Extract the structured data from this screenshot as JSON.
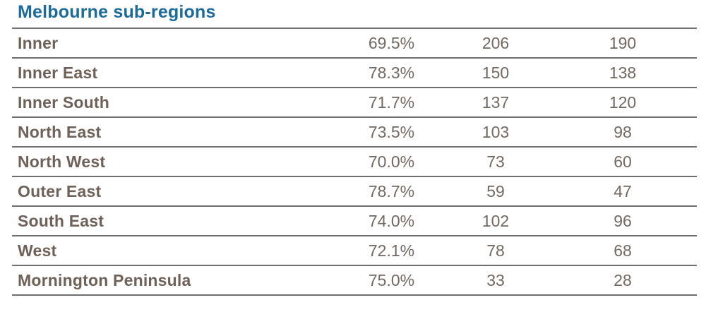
{
  "title": "Melbourne sub-regions",
  "colors": {
    "title_text": "#1B6C9A",
    "region_text": "#6F6157",
    "value_text": "#716961",
    "row_border": "#6F6F6F",
    "background": "#FFFFFF"
  },
  "chart_data": {
    "type": "table",
    "title": "Melbourne sub-regions",
    "rows": [
      [
        "Inner",
        "69.5%",
        "206",
        "190"
      ],
      [
        "Inner East",
        "78.3%",
        "150",
        "138"
      ],
      [
        "Inner South",
        "71.7%",
        "137",
        "120"
      ],
      [
        "North East",
        "73.5%",
        "103",
        "98"
      ],
      [
        "North West",
        "70.0%",
        "73",
        "60"
      ],
      [
        "Outer East",
        "78.7%",
        "59",
        "47"
      ],
      [
        "South East",
        "74.0%",
        "102",
        "96"
      ],
      [
        "West",
        "72.1%",
        "78",
        "68"
      ],
      [
        "Mornington Peninsula",
        "75.0%",
        "33",
        "28"
      ]
    ]
  }
}
